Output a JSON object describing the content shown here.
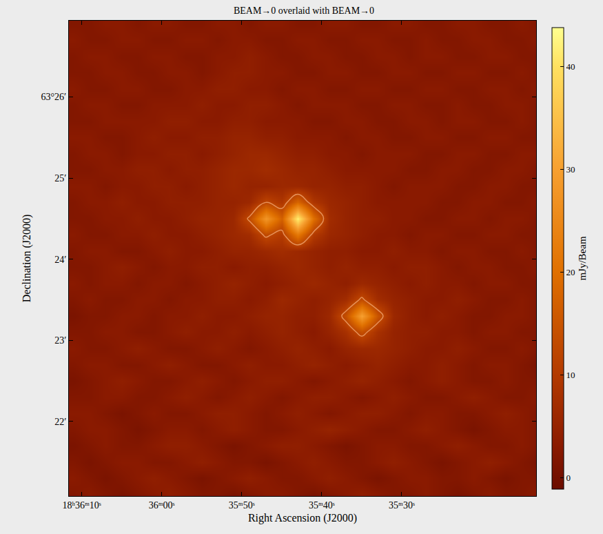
{
  "chart_data": {
    "type": "heatmap",
    "title": "BEAM→0 overlaid with BEAM→0",
    "xlabel": "Right Ascension (J2000)",
    "ylabel": "Declination (J2000)",
    "colorbar_label": "mJy/Beam",
    "x": [
      71,
      69,
      67,
      65,
      63,
      61,
      59,
      57,
      55,
      53,
      51,
      49,
      47,
      45,
      43,
      41,
      39,
      37,
      35,
      33,
      31,
      29,
      27,
      25,
      23,
      21,
      19,
      17,
      15,
      13
    ],
    "y": [
      21.1,
      21.3,
      21.5,
      21.7,
      21.9,
      22.1,
      22.3,
      22.5,
      22.7,
      22.9,
      23.1,
      23.3,
      23.5,
      23.7,
      23.9,
      24.1,
      24.3,
      24.5,
      24.7,
      24.9,
      25.1,
      25.3,
      25.5,
      25.7,
      25.9,
      26.1,
      26.3,
      26.5,
      26.7,
      26.9
    ],
    "xlim": [
      71.6,
      13.2
    ],
    "xticks": [
      {
        "value": 70,
        "label": "18ʰ36ᵐ10ˢ"
      },
      {
        "value": 60,
        "label": "36ᵐ00ˢ"
      },
      {
        "value": 50,
        "label": "35ᵐ50ˢ"
      },
      {
        "value": 40,
        "label": "35ᵐ40ˢ"
      },
      {
        "value": 30,
        "label": "35ᵐ30ˢ"
      }
    ],
    "ylim": [
      21.08,
      26.94
    ],
    "yticks": [
      {
        "value": 22,
        "label": "22′"
      },
      {
        "value": 23,
        "label": "23′"
      },
      {
        "value": 24,
        "label": "24′"
      },
      {
        "value": 25,
        "label": "25′"
      },
      {
        "value": 26,
        "label": "63°26′"
      }
    ],
    "zlim": [
      -1.1,
      43.8
    ],
    "zticks": [
      0,
      10,
      20,
      30,
      40
    ],
    "contours": {
      "level": 12,
      "color": "#e8258f"
    },
    "z": [
      [
        2,
        3,
        2,
        1,
        2,
        3,
        4,
        3,
        2,
        2,
        1,
        2,
        3,
        3,
        2,
        1,
        2,
        3,
        4,
        3,
        2,
        2,
        3,
        2,
        1,
        2,
        3,
        2,
        2,
        3
      ],
      [
        3,
        2,
        1,
        2,
        3,
        4,
        3,
        2,
        1,
        2,
        3,
        4,
        3,
        2,
        2,
        3,
        4,
        3,
        2,
        1,
        2,
        3,
        3,
        2,
        2,
        3,
        2,
        1,
        2,
        2
      ],
      [
        2,
        1,
        2,
        3,
        3,
        2,
        2,
        3,
        4,
        3,
        2,
        2,
        1,
        2,
        3,
        4,
        3,
        2,
        2,
        3,
        4,
        3,
        2,
        1,
        2,
        3,
        4,
        3,
        2,
        1
      ],
      [
        1,
        2,
        3,
        2,
        2,
        3,
        4,
        4,
        3,
        2,
        1,
        2,
        3,
        4,
        4,
        3,
        2,
        1,
        2,
        3,
        3,
        2,
        2,
        3,
        4,
        3,
        2,
        2,
        3,
        2
      ],
      [
        2,
        3,
        3,
        2,
        1,
        2,
        3,
        3,
        2,
        3,
        4,
        3,
        2,
        2,
        3,
        4,
        5,
        4,
        3,
        2,
        2,
        3,
        4,
        3,
        2,
        1,
        2,
        3,
        3,
        2
      ],
      [
        3,
        3,
        2,
        1,
        2,
        3,
        2,
        2,
        3,
        4,
        4,
        3,
        2,
        3,
        4,
        3,
        2,
        3,
        4,
        4,
        3,
        2,
        3,
        3,
        2,
        2,
        3,
        4,
        3,
        2
      ],
      [
        2,
        2,
        3,
        3,
        2,
        2,
        3,
        4,
        3,
        2,
        3,
        4,
        3,
        2,
        3,
        4,
        4,
        3,
        2,
        3,
        4,
        3,
        2,
        2,
        3,
        4,
        3,
        2,
        2,
        3
      ],
      [
        1,
        2,
        3,
        4,
        3,
        2,
        2,
        3,
        4,
        3,
        2,
        3,
        4,
        4,
        3,
        2,
        3,
        4,
        5,
        4,
        3,
        2,
        3,
        4,
        3,
        2,
        2,
        3,
        2,
        2
      ],
      [
        2,
        3,
        3,
        2,
        2,
        3,
        4,
        3,
        2,
        2,
        3,
        4,
        3,
        3,
        4,
        5,
        4,
        3,
        4,
        5,
        4,
        3,
        3,
        4,
        3,
        2,
        3,
        3,
        2,
        1
      ],
      [
        3,
        2,
        2,
        3,
        4,
        3,
        2,
        2,
        3,
        4,
        3,
        2,
        3,
        4,
        5,
        4,
        3,
        5,
        6,
        6,
        5,
        4,
        3,
        3,
        4,
        3,
        2,
        2,
        3,
        2
      ],
      [
        2,
        2,
        3,
        3,
        2,
        2,
        3,
        4,
        3,
        3,
        4,
        3,
        4,
        5,
        4,
        3,
        5,
        8,
        14,
        8,
        5,
        4,
        4,
        3,
        3,
        2,
        3,
        3,
        2,
        2
      ],
      [
        1,
        2,
        2,
        3,
        3,
        2,
        3,
        3,
        4,
        3,
        3,
        4,
        5,
        5,
        4,
        4,
        6,
        14,
        30,
        15,
        6,
        4,
        3,
        4,
        3,
        2,
        2,
        3,
        3,
        2
      ],
      [
        2,
        3,
        2,
        2,
        3,
        3,
        2,
        3,
        3,
        4,
        4,
        3,
        4,
        6,
        5,
        4,
        5,
        7,
        13,
        7,
        5,
        4,
        3,
        3,
        4,
        3,
        2,
        2,
        3,
        2
      ],
      [
        3,
        2,
        3,
        3,
        2,
        3,
        3,
        2,
        3,
        4,
        5,
        4,
        3,
        4,
        5,
        6,
        5,
        4,
        6,
        5,
        4,
        3,
        4,
        3,
        3,
        2,
        3,
        3,
        2,
        2
      ],
      [
        2,
        2,
        3,
        4,
        3,
        2,
        3,
        3,
        4,
        4,
        3,
        4,
        4,
        5,
        6,
        5,
        4,
        5,
        4,
        4,
        3,
        4,
        4,
        3,
        2,
        3,
        3,
        2,
        2,
        3
      ],
      [
        2,
        3,
        3,
        2,
        2,
        3,
        4,
        3,
        3,
        4,
        5,
        5,
        6,
        7,
        6,
        5,
        4,
        4,
        3,
        3,
        4,
        3,
        3,
        2,
        3,
        3,
        2,
        2,
        3,
        2
      ],
      [
        3,
        2,
        2,
        3,
        3,
        4,
        3,
        3,
        4,
        5,
        6,
        7,
        13,
        10,
        22,
        10,
        6,
        5,
        4,
        3,
        3,
        2,
        3,
        3,
        2,
        2,
        3,
        3,
        2,
        2
      ],
      [
        2,
        2,
        3,
        3,
        4,
        3,
        3,
        4,
        5,
        5,
        6,
        13,
        28,
        17,
        42,
        20,
        7,
        5,
        4,
        4,
        3,
        3,
        2,
        2,
        3,
        3,
        2,
        3,
        3,
        2
      ],
      [
        2,
        3,
        3,
        4,
        3,
        3,
        4,
        4,
        4,
        5,
        5,
        6,
        12,
        9,
        18,
        9,
        6,
        5,
        4,
        3,
        3,
        3,
        3,
        2,
        2,
        3,
        3,
        2,
        2,
        3
      ],
      [
        3,
        3,
        2,
        3,
        3,
        4,
        4,
        3,
        4,
        5,
        6,
        5,
        5,
        6,
        6,
        5,
        5,
        4,
        4,
        3,
        2,
        3,
        3,
        3,
        2,
        2,
        3,
        3,
        2,
        2
      ],
      [
        2,
        2,
        3,
        3,
        4,
        4,
        3,
        4,
        4,
        5,
        6,
        6,
        7,
        6,
        5,
        5,
        4,
        3,
        3,
        3,
        3,
        2,
        2,
        3,
        3,
        2,
        2,
        3,
        3,
        2
      ],
      [
        2,
        3,
        3,
        2,
        3,
        3,
        4,
        4,
        3,
        4,
        5,
        6,
        6,
        5,
        4,
        4,
        3,
        3,
        2,
        3,
        3,
        3,
        2,
        2,
        3,
        3,
        2,
        2,
        3,
        3
      ],
      [
        3,
        3,
        2,
        2,
        3,
        4,
        3,
        3,
        4,
        4,
        5,
        5,
        4,
        4,
        3,
        3,
        3,
        2,
        3,
        3,
        2,
        2,
        3,
        3,
        2,
        2,
        3,
        3,
        2,
        2
      ],
      [
        2,
        2,
        3,
        3,
        3,
        3,
        4,
        4,
        3,
        3,
        4,
        4,
        3,
        3,
        3,
        2,
        2,
        3,
        3,
        2,
        2,
        3,
        3,
        2,
        3,
        3,
        2,
        2,
        3,
        2
      ],
      [
        2,
        3,
        3,
        2,
        2,
        3,
        3,
        3,
        4,
        3,
        3,
        4,
        4,
        3,
        2,
        3,
        3,
        3,
        2,
        2,
        3,
        3,
        2,
        2,
        3,
        2,
        2,
        3,
        3,
        2
      ],
      [
        3,
        2,
        2,
        3,
        3,
        2,
        2,
        3,
        3,
        4,
        4,
        3,
        3,
        2,
        3,
        3,
        2,
        2,
        3,
        3,
        2,
        2,
        3,
        3,
        2,
        2,
        3,
        3,
        2,
        3
      ],
      [
        2,
        2,
        3,
        3,
        2,
        2,
        3,
        3,
        2,
        3,
        4,
        4,
        3,
        3,
        2,
        2,
        3,
        3,
        2,
        2,
        3,
        3,
        2,
        2,
        3,
        3,
        2,
        2,
        3,
        2
      ],
      [
        2,
        3,
        3,
        2,
        2,
        3,
        3,
        2,
        2,
        3,
        3,
        4,
        3,
        2,
        2,
        3,
        3,
        2,
        2,
        3,
        3,
        2,
        3,
        3,
        2,
        2,
        3,
        3,
        2,
        2
      ],
      [
        3,
        2,
        2,
        3,
        3,
        2,
        2,
        3,
        3,
        2,
        3,
        3,
        2,
        2,
        3,
        3,
        2,
        2,
        3,
        3,
        2,
        2,
        3,
        2,
        2,
        3,
        3,
        2,
        2,
        3
      ],
      [
        2,
        2,
        3,
        3,
        2,
        3,
        3,
        2,
        2,
        3,
        3,
        2,
        3,
        3,
        2,
        2,
        3,
        3,
        2,
        2,
        3,
        3,
        2,
        2,
        3,
        3,
        2,
        2,
        3,
        2
      ]
    ]
  }
}
